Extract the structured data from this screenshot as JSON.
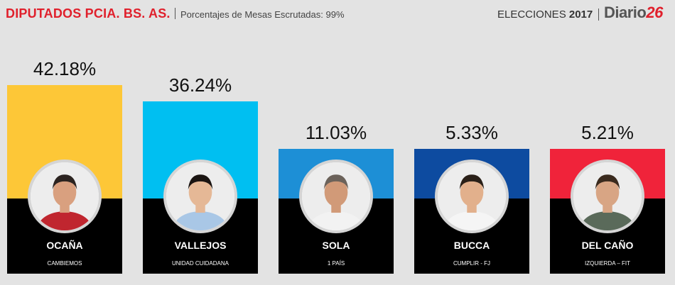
{
  "header": {
    "title": "DIPUTADOS PCIA. BS. AS.",
    "subtitle": "Porcentajes de Mesas Escrutadas: 99%",
    "elections_label": "ELECCIONES",
    "elections_year": "2017",
    "brand_text": "Diario",
    "brand_number": "26"
  },
  "chart_data": {
    "type": "bar",
    "title": "DIPUTADOS PCIA. BS. AS.",
    "categories": [
      "OCAÑA",
      "VALLEJOS",
      "SOLA",
      "BUCCA",
      "DEL CAÑO"
    ],
    "values": [
      42.18,
      36.24,
      11.03,
      5.33,
      5.21
    ],
    "labels": [
      "42.18%",
      "36.24%",
      "11.03%",
      "5.33%",
      "5.21%"
    ],
    "parties": [
      "CAMBIEMOS",
      "UNIDAD CUIDADANA",
      "1 PAÍS",
      "CUMPLIR - FJ",
      "IZQUIERDA – FIT"
    ],
    "colors": [
      "#fdc737",
      "#00bff1",
      "#1d8fd6",
      "#0d4ba0",
      "#f0233a"
    ],
    "ylim": [
      0,
      45
    ]
  }
}
